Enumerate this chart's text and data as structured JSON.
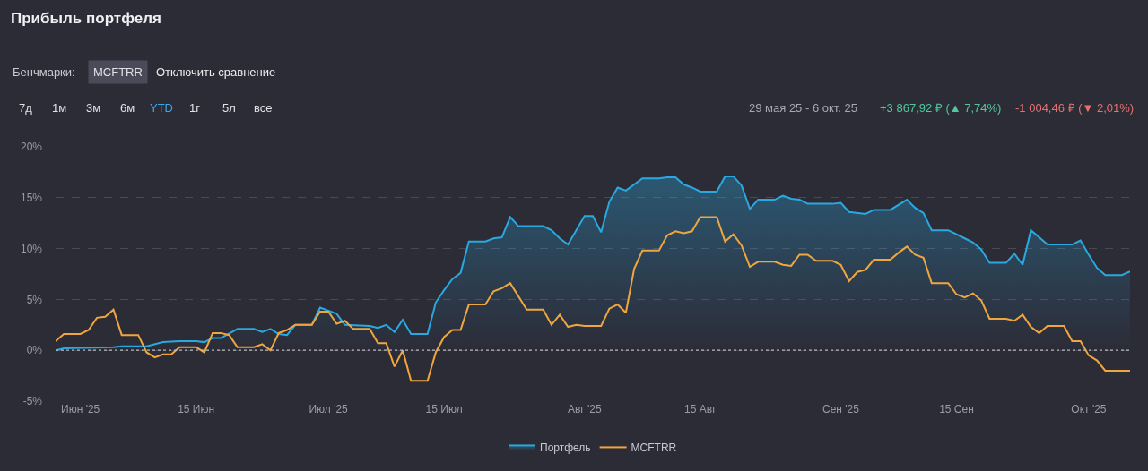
{
  "chart_data": {
    "type": "line",
    "title": "Прибыль портфеля",
    "annotations": [
      "Бенчмарки:",
      "MCFTRR",
      "Отключить сравнение",
      "7д",
      "1м",
      "3м",
      "6м",
      "YTD",
      "1г",
      "5л",
      "все",
      "29 мая 25 - 6 окт. 25",
      "+3 867,92 ₽ (▲ 7,74%)",
      "-1 004,46 ₽ (▼ 2,01%)"
    ],
    "series": [
      {
        "name": "Портфель",
        "type": "area",
        "color": "#2aa8e0",
        "x": [
          "2025-05-29",
          "2025-05-30",
          "2025-06-05",
          "2025-06-06",
          "2025-06-09",
          "2025-06-11",
          "2025-06-13",
          "2025-06-15",
          "2025-06-16",
          "2025-06-17",
          "2025-06-18",
          "2025-06-20",
          "2025-06-22",
          "2025-06-23",
          "2025-06-24",
          "2025-06-25",
          "2025-06-26",
          "2025-06-27",
          "2025-06-29",
          "2025-06-30",
          "2025-07-01",
          "2025-07-02",
          "2025-07-03",
          "2025-07-06",
          "2025-07-07",
          "2025-07-08",
          "2025-07-09",
          "2025-07-10",
          "2025-07-11",
          "2025-07-13",
          "2025-07-14",
          "2025-07-15",
          "2025-07-16",
          "2025-07-17",
          "2025-07-18",
          "2025-07-20",
          "2025-07-21",
          "2025-07-22",
          "2025-07-23",
          "2025-07-24",
          "2025-07-27",
          "2025-07-28",
          "2025-07-29",
          "2025-07-30",
          "2025-08-01",
          "2025-08-02",
          "2025-08-03",
          "2025-08-04",
          "2025-08-05",
          "2025-08-06",
          "2025-08-08",
          "2025-08-10",
          "2025-08-11",
          "2025-08-12",
          "2025-08-13",
          "2025-08-14",
          "2025-08-15",
          "2025-08-17",
          "2025-08-18",
          "2025-08-19",
          "2025-08-20",
          "2025-08-21",
          "2025-08-22",
          "2025-08-24",
          "2025-08-25",
          "2025-08-26",
          "2025-08-27",
          "2025-08-28",
          "2025-08-31",
          "2025-09-01",
          "2025-09-02",
          "2025-09-04",
          "2025-09-05",
          "2025-09-07",
          "2025-09-09",
          "2025-09-10",
          "2025-09-11",
          "2025-09-12",
          "2025-09-14",
          "2025-09-15",
          "2025-09-16",
          "2025-09-17",
          "2025-09-18",
          "2025-09-19",
          "2025-09-21",
          "2025-09-22",
          "2025-09-23",
          "2025-09-24",
          "2025-09-25",
          "2025-09-26",
          "2025-09-29",
          "2025-09-30",
          "2025-10-01",
          "2025-10-02",
          "2025-10-03",
          "2025-10-05",
          "2025-10-06"
        ],
        "values": [
          0,
          0.2,
          0.3,
          0.4,
          0.4,
          0.8,
          0.9,
          0.9,
          0.8,
          1.2,
          1.2,
          2.1,
          2.1,
          1.8,
          2.1,
          1.6,
          1.5,
          2.5,
          2.5,
          4.2,
          3.9,
          3.6,
          2.5,
          2.4,
          2.2,
          2.5,
          1.8,
          3.0,
          1.6,
          1.6,
          4.7,
          5.9,
          7.0,
          7.6,
          10.7,
          10.7,
          11.0,
          11.1,
          13.1,
          12.2,
          12.2,
          11.8,
          11.0,
          10.4,
          13.2,
          13.2,
          11.6,
          14.6,
          16.0,
          15.7,
          16.9,
          16.9,
          17.0,
          17.0,
          16.3,
          16.0,
          15.6,
          15.6,
          17.1,
          17.1,
          16.2,
          13.9,
          14.8,
          14.8,
          15.2,
          14.9,
          14.8,
          14.4,
          14.4,
          14.5,
          13.6,
          13.4,
          13.8,
          13.8,
          14.8,
          14.0,
          13.5,
          11.8,
          11.8,
          11.4,
          11.0,
          10.6,
          9.9,
          8.6,
          8.6,
          9.5,
          8.4,
          11.8,
          11.1,
          10.4,
          10.4,
          10.8,
          9.4,
          8.1,
          7.4,
          7.4,
          7.74
        ]
      },
      {
        "name": "MCFTRR",
        "color": "#f0a640",
        "x": [
          "2025-05-29",
          "2025-05-30",
          "2025-06-01",
          "2025-06-02",
          "2025-06-03",
          "2025-06-04",
          "2025-06-05",
          "2025-06-06",
          "2025-06-08",
          "2025-06-09",
          "2025-06-10",
          "2025-06-11",
          "2025-06-12",
          "2025-06-13",
          "2025-06-15",
          "2025-06-16",
          "2025-06-17",
          "2025-06-18",
          "2025-06-19",
          "2025-06-20",
          "2025-06-22",
          "2025-06-23",
          "2025-06-24",
          "2025-06-25",
          "2025-06-26",
          "2025-06-27",
          "2025-06-29",
          "2025-06-30",
          "2025-07-01",
          "2025-07-02",
          "2025-07-03",
          "2025-07-04",
          "2025-07-06",
          "2025-07-07",
          "2025-07-08",
          "2025-07-09",
          "2025-07-10",
          "2025-07-11",
          "2025-07-13",
          "2025-07-14",
          "2025-07-15",
          "2025-07-16",
          "2025-07-17",
          "2025-07-18",
          "2025-07-20",
          "2025-07-21",
          "2025-07-22",
          "2025-07-23",
          "2025-07-25",
          "2025-07-27",
          "2025-07-28",
          "2025-07-29",
          "2025-07-30",
          "2025-07-31",
          "2025-08-01",
          "2025-08-03",
          "2025-08-04",
          "2025-08-05",
          "2025-08-06",
          "2025-08-07",
          "2025-08-08",
          "2025-08-10",
          "2025-08-11",
          "2025-08-12",
          "2025-08-13",
          "2025-08-14",
          "2025-08-15",
          "2025-08-17",
          "2025-08-18",
          "2025-08-19",
          "2025-08-20",
          "2025-08-21",
          "2025-08-22",
          "2025-08-24",
          "2025-08-25",
          "2025-08-26",
          "2025-08-27",
          "2025-08-28",
          "2025-08-29",
          "2025-08-31",
          "2025-09-01",
          "2025-09-02",
          "2025-09-03",
          "2025-09-04",
          "2025-09-05",
          "2025-09-07",
          "2025-09-08",
          "2025-09-09",
          "2025-09-10",
          "2025-09-11",
          "2025-09-12",
          "2025-09-14",
          "2025-09-15",
          "2025-09-16",
          "2025-09-17",
          "2025-09-18",
          "2025-09-19",
          "2025-09-21",
          "2025-09-22",
          "2025-09-23",
          "2025-09-24",
          "2025-09-25",
          "2025-09-26",
          "2025-09-28",
          "2025-09-29",
          "2025-09-30",
          "2025-10-01",
          "2025-10-02",
          "2025-10-03",
          "2025-10-06"
        ],
        "values": [
          0.9,
          1.6,
          1.6,
          2.0,
          3.2,
          3.3,
          4.0,
          1.5,
          1.5,
          -0.2,
          -0.7,
          -0.4,
          -0.4,
          0.3,
          0.3,
          -0.2,
          1.7,
          1.7,
          1.5,
          0.3,
          0.3,
          0.6,
          0,
          1.7,
          2.0,
          2.5,
          2.5,
          3.8,
          3.8,
          2.6,
          2.9,
          2.1,
          2.1,
          0.7,
          0.7,
          -1.6,
          0,
          -3.0,
          -3.0,
          -0.2,
          1.3,
          2.0,
          2.0,
          4.5,
          4.5,
          5.8,
          6.1,
          6.6,
          4.0,
          4.0,
          2.5,
          3.5,
          2.3,
          2.5,
          2.4,
          2.4,
          4.1,
          4.5,
          3.7,
          8.0,
          9.8,
          9.8,
          11.3,
          11.7,
          11.5,
          11.7,
          13.1,
          13.1,
          10.7,
          11.4,
          10.3,
          8.2,
          8.7,
          8.7,
          8.4,
          8.3,
          9.4,
          9.4,
          8.8,
          8.8,
          8.4,
          6.8,
          7.7,
          7.9,
          8.9,
          8.9,
          9.6,
          10.2,
          9.4,
          9.1,
          6.6,
          6.6,
          5.5,
          5.2,
          5.6,
          4.9,
          3.1,
          3.1,
          2.9,
          3.5,
          2.3,
          1.7,
          2.4,
          2.4,
          0.9,
          0.9,
          -0.5,
          -1.0,
          -2.0,
          -2.01
        ]
      }
    ],
    "xlim": [
      "2025-05-29",
      "2025-10-06"
    ],
    "xticks": [
      {
        "value": "2025-06-01",
        "label": "Июн '25"
      },
      {
        "value": "2025-06-15",
        "label": "15 Июн"
      },
      {
        "value": "2025-07-01",
        "label": "Июл '25"
      },
      {
        "value": "2025-07-15",
        "label": "15 Июл"
      },
      {
        "value": "2025-08-01",
        "label": "Авг '25"
      },
      {
        "value": "2025-08-15",
        "label": "15 Авг"
      },
      {
        "value": "2025-09-01",
        "label": "Сен '25"
      },
      {
        "value": "2025-09-15",
        "label": "15 Сен"
      },
      {
        "value": "2025-10-01",
        "label": "Окт '25"
      }
    ],
    "ylim": [
      -5,
      20
    ],
    "yticks": [
      {
        "value": -5,
        "label": "-5%"
      },
      {
        "value": 0,
        "label": "0%"
      },
      {
        "value": 5,
        "label": "5%"
      },
      {
        "value": 10,
        "label": "10%"
      },
      {
        "value": 15,
        "label": "15%"
      },
      {
        "value": 20,
        "label": "20%"
      }
    ],
    "ref_lines": [
      {
        "axis": "y",
        "value": 0,
        "color": "#b8b8c0",
        "line_style": "dotted"
      }
    ],
    "grid": "y",
    "legend": "bottom",
    "marker": "none",
    "line_style": "solid"
  }
}
